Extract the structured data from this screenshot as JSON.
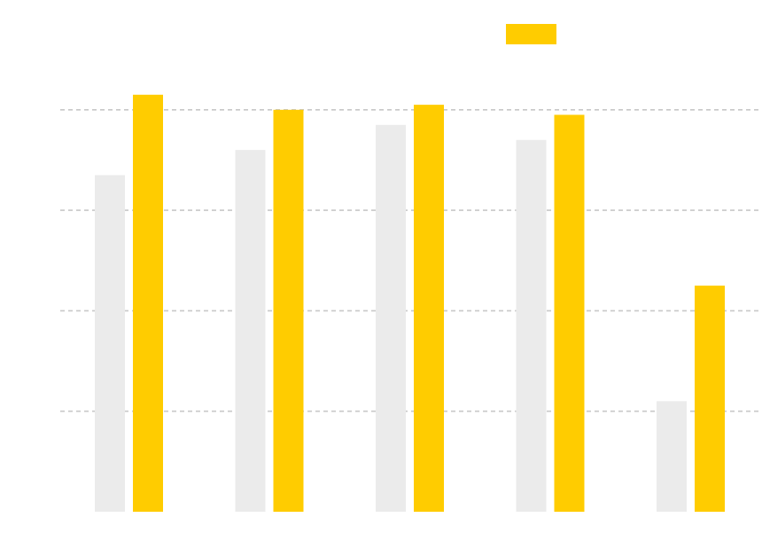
{
  "chart_data": {
    "type": "bar",
    "title": "",
    "xlabel": "",
    "ylabel": "",
    "categories": [
      "",
      "",
      "",
      "",
      ""
    ],
    "ylim": [
      0,
      40
    ],
    "yticks": [
      10,
      20,
      30,
      40
    ],
    "grid": true,
    "legend": "top-right",
    "series": [
      {
        "color": "#ebebeb",
        "values": [
          33.5,
          36,
          38.5,
          37,
          11
        ]
      },
      {
        "color": "#ffcc00",
        "values": [
          41.5,
          40,
          40.5,
          39.5,
          22.5
        ]
      }
    ]
  }
}
